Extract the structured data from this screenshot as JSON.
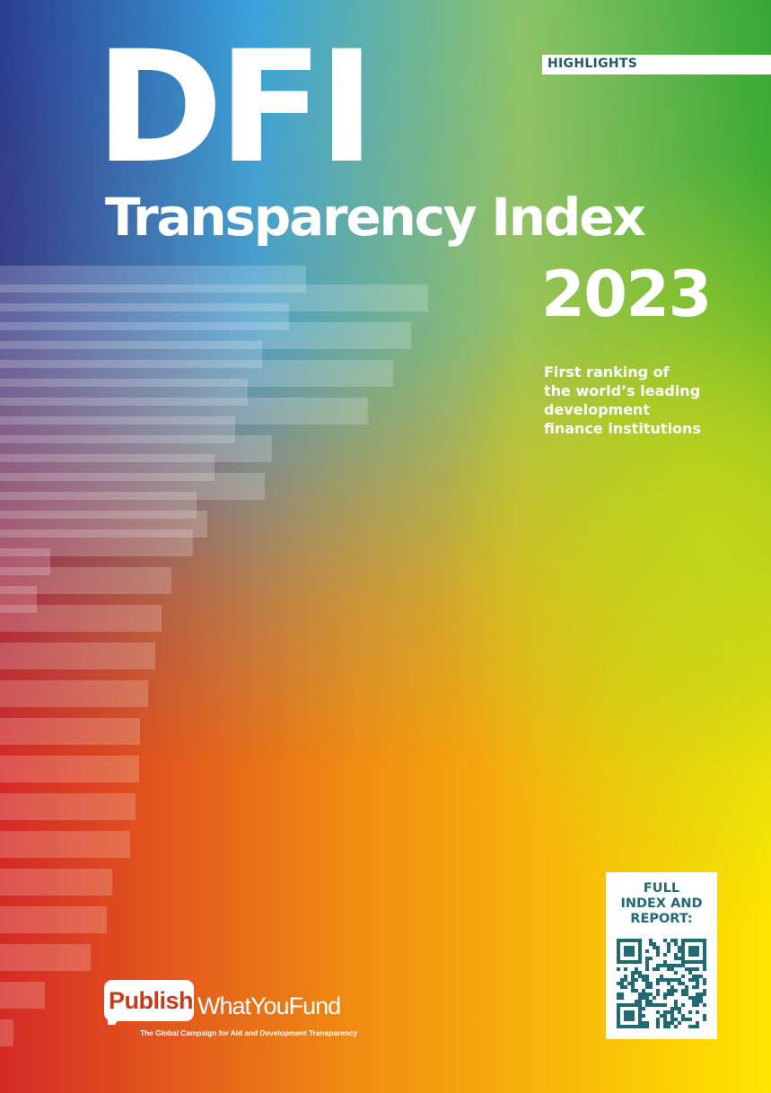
{
  "cover": {
    "badge": "HIGHLIGHTS",
    "title_main": "DFI",
    "title_sub": "Transparency Index",
    "year": "2023",
    "tagline_lines": [
      "First ranking of",
      "the world’s leading",
      "development",
      "finance institutions"
    ]
  },
  "qr_card": {
    "label_lines": [
      "FULL",
      "INDEX AND",
      "REPORT:"
    ],
    "qr_code_icon": "qr-code-icon"
  },
  "logo": {
    "publish": "Publish",
    "what_you_fund": "WhatYouFund",
    "caption": "The Global Campaign for Aid and Development Transparency"
  },
  "colors": {
    "blue": "#2b3d8f",
    "sky": "#3ba7df",
    "green": "#3aa935",
    "lime": "#b5cf1f",
    "yellow": "#ffe900",
    "orange": "#f07a1a",
    "red": "#d72b26",
    "teal_text": "#1f6a73"
  }
}
